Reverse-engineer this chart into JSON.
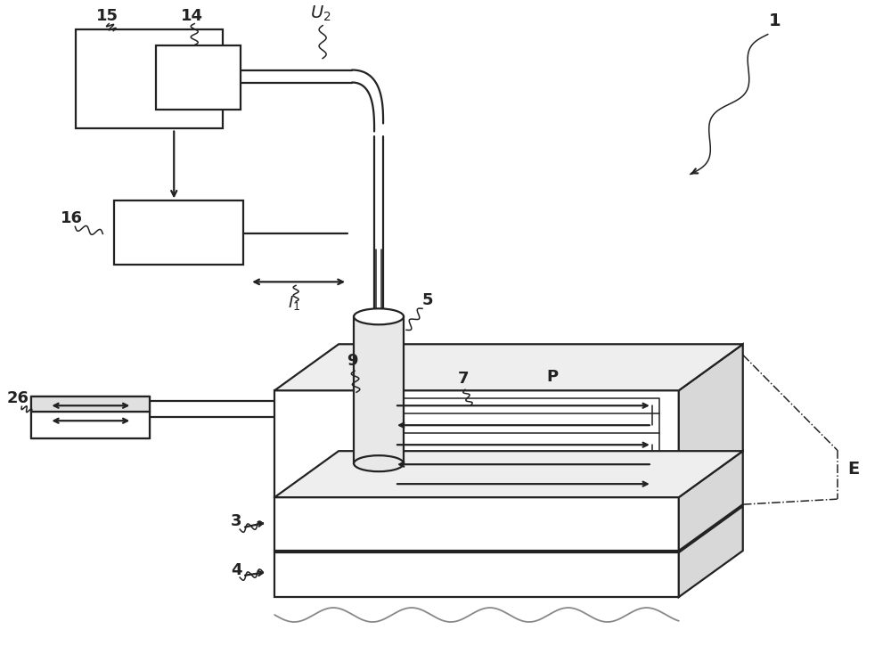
{
  "bg_color": "#ffffff",
  "line_color": "#222222",
  "fig_width": 10.0,
  "fig_height": 7.34,
  "lw_main": 1.6,
  "lw_thin": 1.1,
  "font_size": 13
}
